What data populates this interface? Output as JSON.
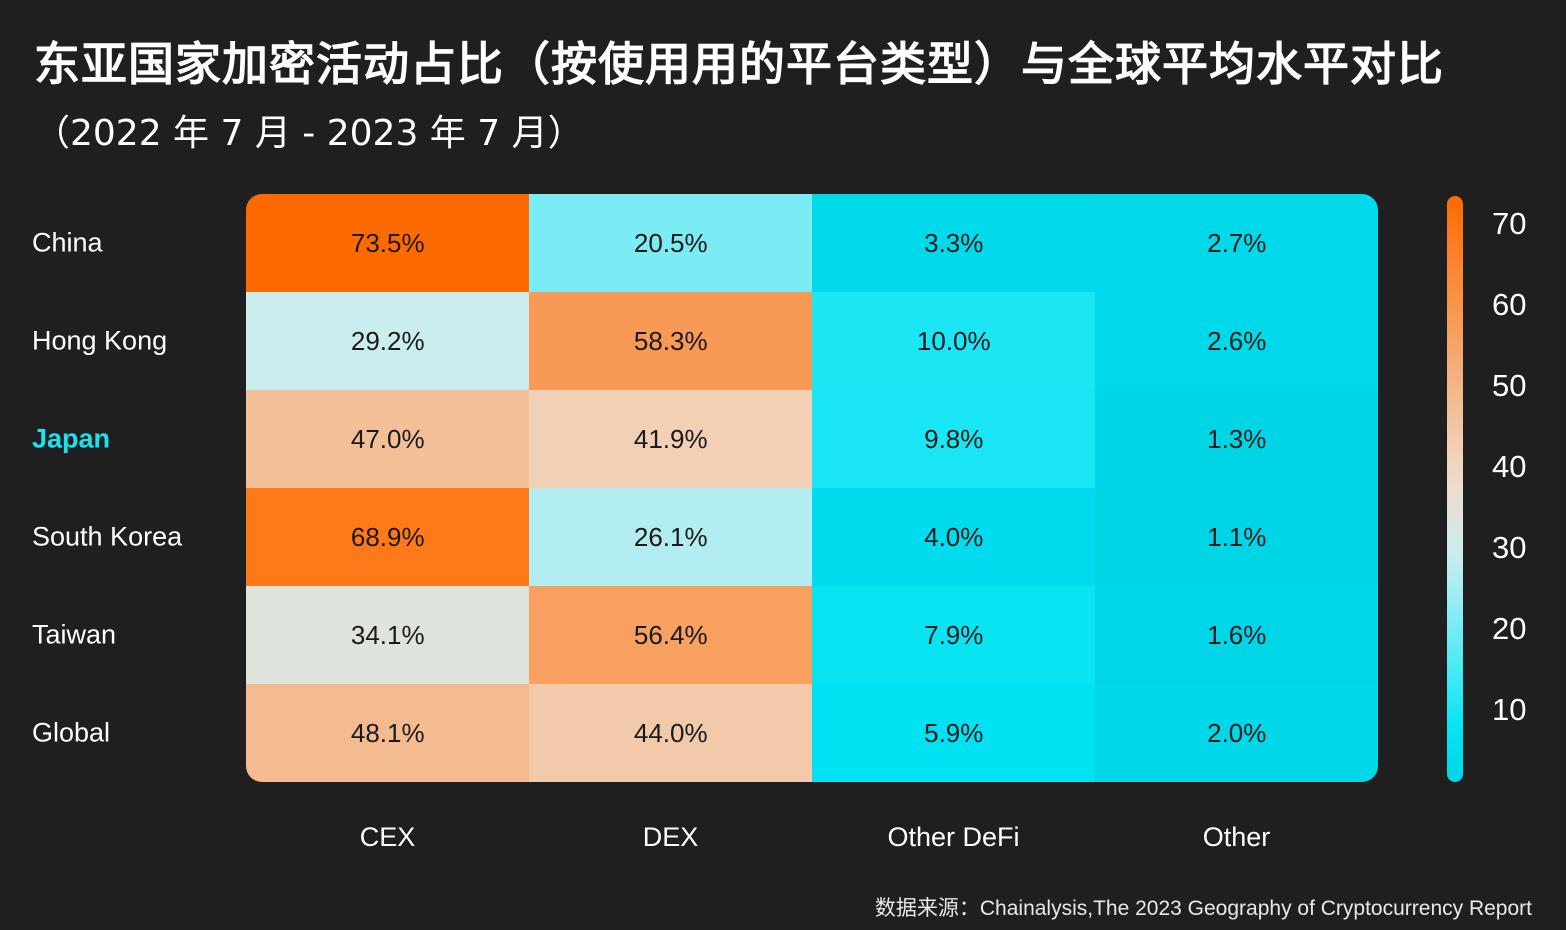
{
  "title": "东亚国家加密活动占比（按使用用的平台类型）与全球平均水平对比",
  "subtitle": "（2022 年 7 月 - 2023 年 7 月）",
  "source": "数据来源：Chainalysis,The 2023 Geography of Cryptocurrency Report",
  "colors": {
    "background": "#1f1f1f",
    "high": "#ff6a00",
    "mid": "#e8e4e0",
    "low": "#00dff0",
    "highlight_label": "#19e3f0"
  },
  "chart_data": {
    "type": "heatmap",
    "title": "东亚国家加密活动占比（按使用用的平台类型）与全球平均水平对比",
    "subtitle": "（2022 年 7 月 - 2023 年 7 月）",
    "rows": [
      "China",
      "Hong Kong",
      "Japan",
      "South Korea",
      "Taiwan",
      "Global"
    ],
    "highlight_row": "Japan",
    "columns": [
      "CEX",
      "DEX",
      "Other DeFi",
      "Other"
    ],
    "values": [
      [
        73.5,
        20.5,
        3.3,
        2.7
      ],
      [
        29.2,
        58.3,
        10.0,
        2.6
      ],
      [
        47.0,
        41.9,
        9.8,
        1.3
      ],
      [
        68.9,
        26.1,
        4.0,
        1.1
      ],
      [
        34.1,
        56.4,
        7.9,
        1.6
      ],
      [
        48.1,
        44.0,
        5.9,
        2.0
      ]
    ],
    "cell_labels": [
      [
        "73.5%",
        "20.5%",
        "3.3%",
        "2.7%"
      ],
      [
        "29.2%",
        "58.3%",
        "10.0%",
        "2.6%"
      ],
      [
        "47.0%",
        "41.9%",
        "9.8%",
        "1.3%"
      ],
      [
        "68.9%",
        "26.1%",
        "4.0%",
        "1.1%"
      ],
      [
        "34.1%",
        "56.4%",
        "7.9%",
        "1.6%"
      ],
      [
        "48.1%",
        "44.0%",
        "5.9%",
        "2.0%"
      ]
    ],
    "colorbar": {
      "range": [
        1.1,
        73.5
      ],
      "ticks": [
        "70",
        "60",
        "50",
        "40",
        "30",
        "20",
        "10"
      ],
      "tick_values": [
        70,
        60,
        50,
        40,
        30,
        20,
        10
      ],
      "placement": "right"
    }
  }
}
